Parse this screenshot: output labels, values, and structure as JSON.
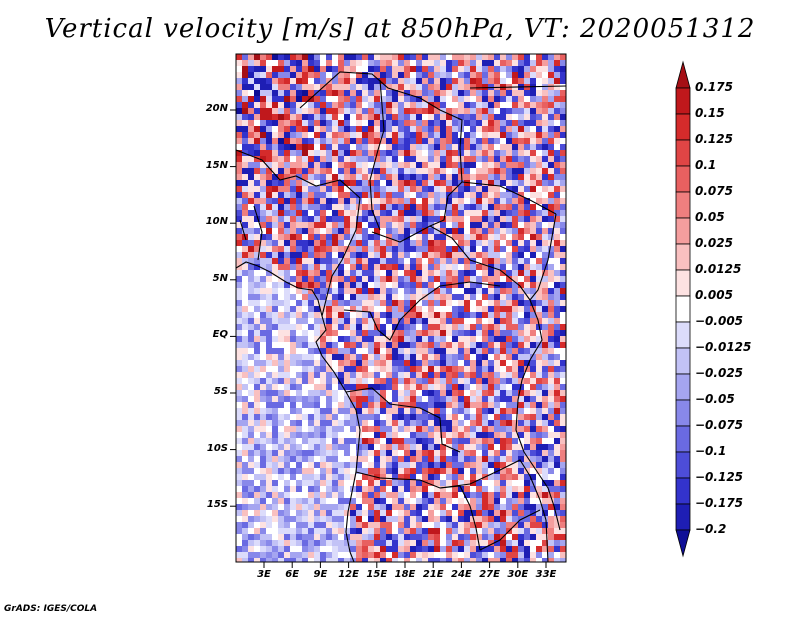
{
  "title": "Vertical velocity [m/s] at 850hPa, VT: 2020051312",
  "y_ticks": [
    "20N",
    "15N",
    "10N",
    "5N",
    "EQ",
    "5S",
    "10S",
    "15S"
  ],
  "x_ticks": [
    "3E",
    "6E",
    "9E",
    "12E",
    "15E",
    "18E",
    "21E",
    "24E",
    "27E",
    "30E",
    "33E"
  ],
  "colorbar": {
    "labels": [
      "0.175",
      "0.15",
      "0.125",
      "0.1",
      "0.075",
      "0.05",
      "0.025",
      "0.0125",
      "0.005",
      "−0.005",
      "−0.0125",
      "−0.025",
      "−0.05",
      "−0.075",
      "−0.1",
      "−0.125",
      "−0.175",
      "−0.2"
    ],
    "colors": [
      "#a50f15",
      "#c0181c",
      "#d52b2b",
      "#e04545",
      "#e86060",
      "#ef7f7f",
      "#f59e9e",
      "#f9c0c0",
      "#fde2e2",
      "#ffffff",
      "#dcdcfb",
      "#c2c2f6",
      "#a5a5f0",
      "#8888ea",
      "#6a6ae2",
      "#4d4dd8",
      "#3333cc",
      "#1e1eb4",
      "#0f0f96"
    ]
  },
  "credit": "GrADS: IGES/COLA"
}
